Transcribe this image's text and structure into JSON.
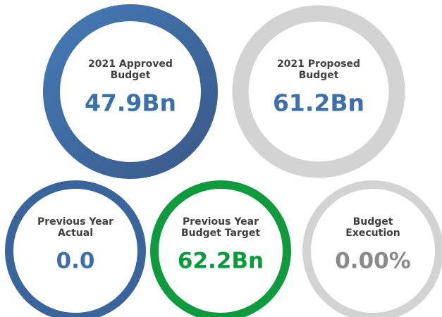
{
  "cards": [
    {
      "label_lines": [
        "2021 Approved",
        "Budget"
      ],
      "value": "47.9Bn",
      "ring_color": "#3f6ea8",
      "value_color": "#3d6fab"
    },
    {
      "label_lines": [
        "2021 Proposed",
        "Budget"
      ],
      "value": "61.2Bn",
      "ring_color": "#d3d3d3",
      "value_color": "#3d6fab"
    },
    {
      "label_lines": [
        "Previous Year",
        "Actual"
      ],
      "value": "0.0",
      "ring_color": "#3a659c",
      "value_color": "#3d6fab"
    },
    {
      "label_lines": [
        "Previous Year",
        "Budget Target"
      ],
      "value": "62.2Bn",
      "ring_color": "#0e9a3d",
      "value_color": "#0a9a3c"
    },
    {
      "label_lines": [
        "Budget",
        "Execution"
      ],
      "value": "0.00%",
      "ring_color": "#d3d3d3",
      "value_color": "#8a8a8a"
    }
  ]
}
